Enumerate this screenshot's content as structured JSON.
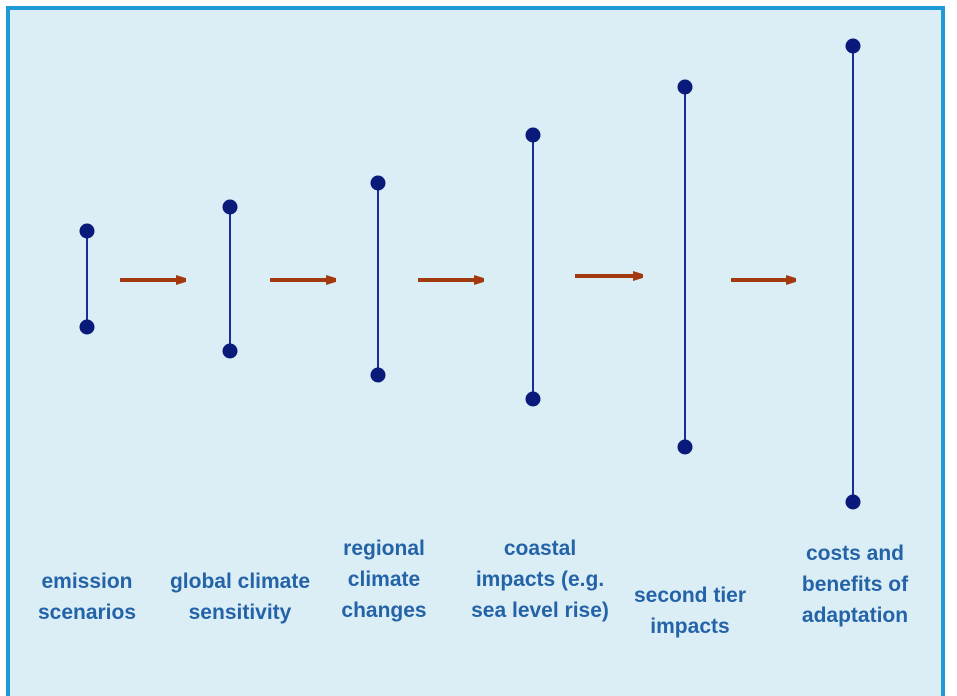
{
  "stages": [
    {
      "label": "emission\nscenarios"
    },
    {
      "label": "global climate\nsensitivity"
    },
    {
      "label": "regional\nclimate\nchanges"
    },
    {
      "label": "coastal\nimpacts (e.g.\nsea level rise)"
    },
    {
      "label": "second tier\nimpacts"
    },
    {
      "label": "costs and\nbenefits of\nadaptation"
    }
  ],
  "colors": {
    "background": "#dbeef5",
    "border": "#1f9ad6",
    "range_line": "#1a2b9e",
    "range_dot": "#0a1a7a",
    "arrow": "#a3390e",
    "label": "#2463a8"
  }
}
